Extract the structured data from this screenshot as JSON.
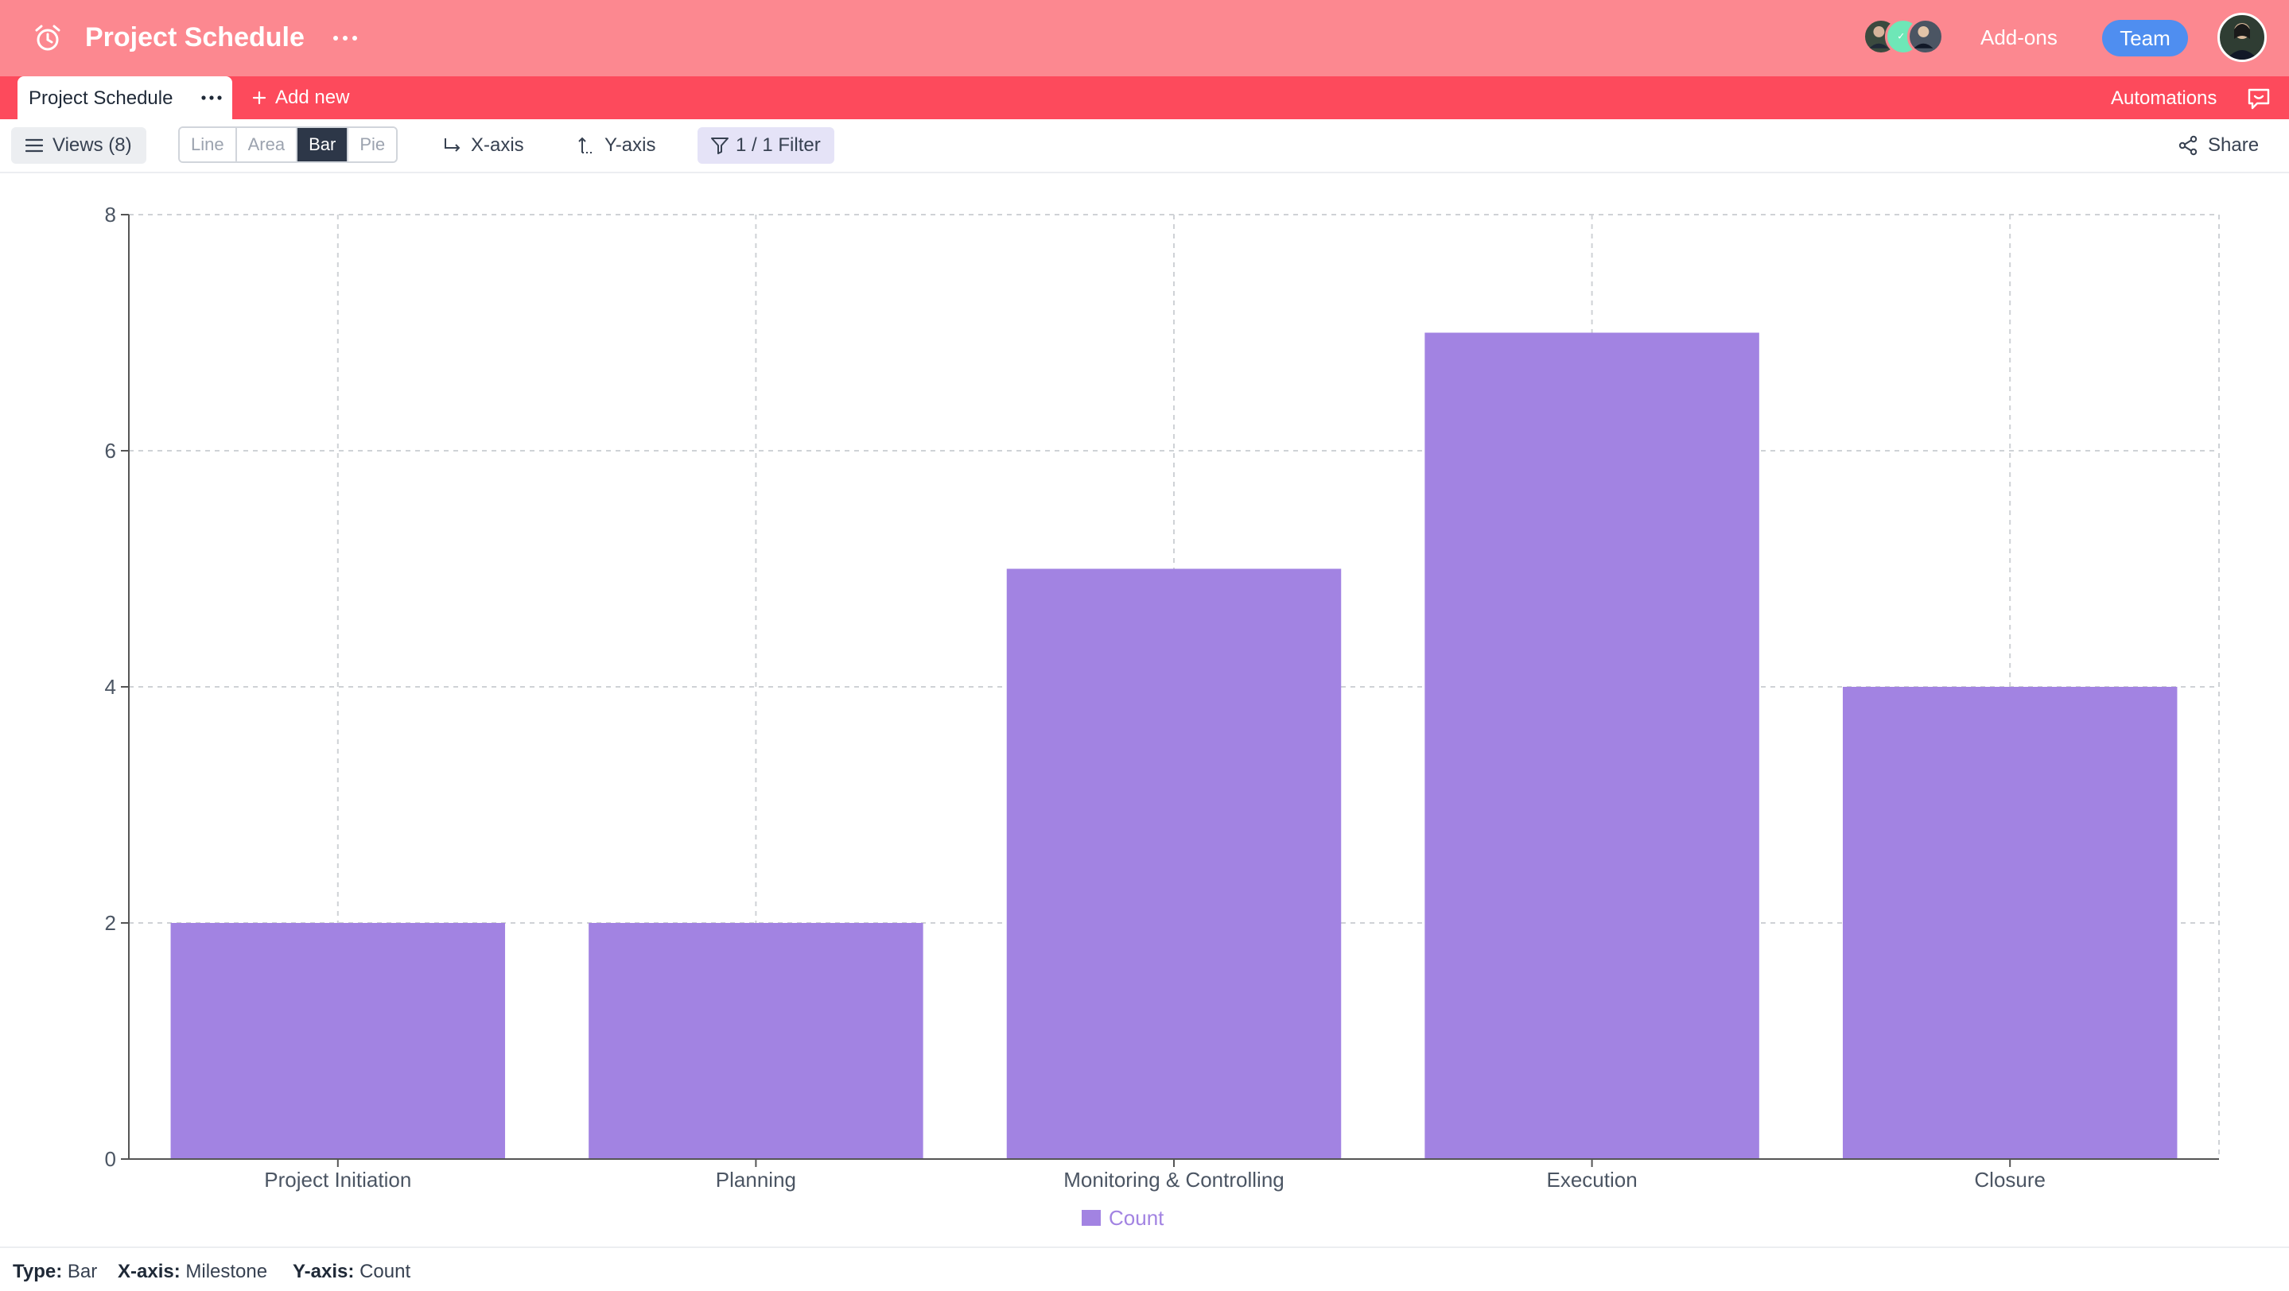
{
  "header": {
    "title": "Project Schedule",
    "addons_label": "Add-ons",
    "team_label": "Team",
    "accent_color": "#fc8890"
  },
  "tabs": {
    "active_label": "Project Schedule",
    "add_new_label": "Add new",
    "automations_label": "Automations",
    "bar_color": "#fd4a5c"
  },
  "toolbar": {
    "views_label": "Views (8)",
    "chart_types": [
      "Line",
      "Area",
      "Bar",
      "Pie"
    ],
    "selected_chart_type": "Bar",
    "xaxis_label": "X-axis",
    "yaxis_label": "Y-axis",
    "filter_label": "1 / 1 Filter",
    "share_label": "Share"
  },
  "chart_data": {
    "type": "bar",
    "categories": [
      "Project Initiation",
      "Planning",
      "Monitoring & Controlling",
      "Execution",
      "Closure"
    ],
    "series": [
      {
        "name": "Count",
        "values": [
          2,
          2,
          5,
          7,
          4
        ],
        "color": "#a283e2"
      }
    ],
    "ylim": [
      0,
      8
    ],
    "yticks": [
      0,
      2,
      4,
      6,
      8
    ],
    "grid": true,
    "legend_position": "bottom"
  },
  "footer": {
    "type_key": "Type:",
    "type_value": "Bar",
    "xaxis_key": "X-axis:",
    "xaxis_value": "Milestone",
    "yaxis_key": "Y-axis:",
    "yaxis_value": "Count"
  }
}
